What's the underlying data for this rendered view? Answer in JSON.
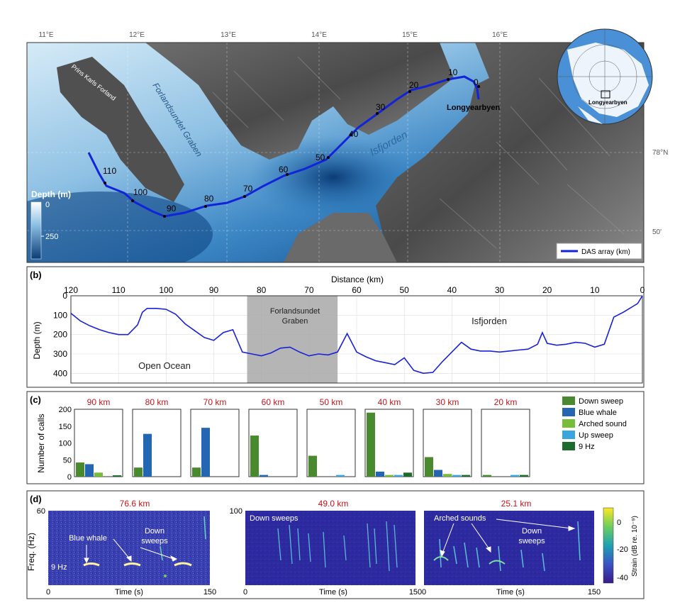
{
  "panel_a": {
    "lon_labels": [
      "11°E",
      "12°E",
      "13°E",
      "14°E",
      "15°E",
      "16°E"
    ],
    "lat_labels": [
      "78°N",
      "50'"
    ],
    "place_labels": {
      "prins_karls_forland": "Prins Karls Forland",
      "forlandsundet_graben": "Forlandsundet Graben",
      "isfjorden": "Isfjorden",
      "longyearbyen": "Longyearbyen"
    },
    "km_markers": [
      "0",
      "10",
      "20",
      "30",
      "40",
      "50",
      "60",
      "70",
      "80",
      "90",
      "100",
      "110"
    ],
    "depth_colorbar": {
      "title": "Depth (m)",
      "ticks": [
        "0",
        "250"
      ]
    },
    "legend_label": "DAS array (km)"
  },
  "panel_b": {
    "label": "(b)",
    "top_axis_label": "Distance (km)",
    "x_ticks": [
      "120",
      "110",
      "100",
      "90",
      "80",
      "70",
      "60",
      "50",
      "40",
      "30",
      "20",
      "10",
      "0"
    ],
    "y_ticks": [
      "0",
      "100",
      "200",
      "300",
      "400"
    ],
    "ylabel": "Depth (m)",
    "region_labels": {
      "graben_line1": "Forlandsundet",
      "graben_line2": "Graben",
      "isfjorden": "Isfjorden",
      "ocean": "Open Ocean"
    }
  },
  "panel_c": {
    "label": "(c)",
    "ylabel": "Number of calls",
    "y_ticks": [
      "0",
      "50",
      "100",
      "150",
      "200"
    ],
    "legend": [
      "Down sweep",
      "Blue whale",
      "Arched sound",
      "Up sweep",
      "9 Hz"
    ],
    "colors": [
      "#4a8a2e",
      "#2466b2",
      "#76bd38",
      "#3aa6e0",
      "#1e6b2e"
    ]
  },
  "panel_d": {
    "label": "(d)",
    "titles": [
      "76.6 km",
      "49.0 km",
      "25.1 km"
    ],
    "xlabel": "Time (s)",
    "x_ticks": [
      "0",
      "150"
    ],
    "ylabel": "Freq. (Hz)",
    "y_top_ticks": [
      "60",
      "100"
    ],
    "annotations": {
      "blue_whale": "Blue whale",
      "down_sweeps_1": "Down",
      "down_sweeps_2": "sweeps",
      "nine_hz": "9 Hz",
      "down_sweeps_label": "Down sweeps",
      "arched_sounds": "Arched sounds"
    },
    "colorbar_ticks": [
      "0",
      "-20",
      "-40"
    ],
    "colorbar_label": "Strain (dB re. 10⁻⁹)"
  },
  "chart_data": [
    {
      "type": "line",
      "x": [
        120,
        118,
        116,
        114,
        112,
        110,
        108,
        106,
        105,
        104,
        102,
        100,
        98,
        96,
        94,
        92,
        90,
        88,
        86,
        84,
        82,
        80,
        78,
        76,
        74,
        72,
        70,
        68,
        66,
        64,
        62,
        60,
        58,
        56,
        54,
        52,
        50,
        48,
        46,
        44,
        42,
        40,
        38,
        36,
        34,
        32,
        30,
        28,
        26,
        24,
        22,
        21,
        20,
        18,
        16,
        14,
        12,
        10,
        8,
        6,
        4,
        2,
        1,
        0
      ],
      "y": [
        90,
        130,
        155,
        175,
        190,
        200,
        200,
        150,
        85,
        65,
        65,
        70,
        95,
        145,
        180,
        215,
        230,
        190,
        175,
        290,
        300,
        310,
        295,
        270,
        265,
        290,
        310,
        300,
        305,
        290,
        195,
        290,
        315,
        335,
        345,
        355,
        320,
        385,
        400,
        395,
        340,
        290,
        240,
        275,
        285,
        285,
        290,
        285,
        280,
        275,
        250,
        190,
        245,
        255,
        250,
        240,
        245,
        265,
        250,
        110,
        85,
        55,
        40,
        0
      ],
      "xlabel": "Distance (km)",
      "ylabel": "Depth (m)",
      "xlim": [
        120,
        0
      ],
      "ylim": [
        0,
        450
      ]
    },
    {
      "type": "bar",
      "categories": [
        "90 km",
        "80 km",
        "70 km",
        "60 km",
        "50 km",
        "40 km",
        "30 km",
        "20 km"
      ],
      "series": [
        {
          "name": "Down sweep",
          "values": [
            42,
            27,
            27,
            122,
            62,
            190,
            58,
            5
          ]
        },
        {
          "name": "Blue whale",
          "values": [
            37,
            127,
            145,
            5,
            0,
            15,
            20,
            0
          ]
        },
        {
          "name": "Arched sound",
          "values": [
            12,
            0,
            0,
            0,
            0,
            5,
            8,
            0
          ]
        },
        {
          "name": "Up sweep",
          "values": [
            0,
            0,
            0,
            0,
            5,
            5,
            5,
            5
          ]
        },
        {
          "name": "9 Hz",
          "values": [
            4,
            0,
            0,
            0,
            0,
            12,
            5,
            5
          ]
        }
      ],
      "ylabel": "Number of calls",
      "ylim": [
        0,
        200
      ]
    }
  ]
}
